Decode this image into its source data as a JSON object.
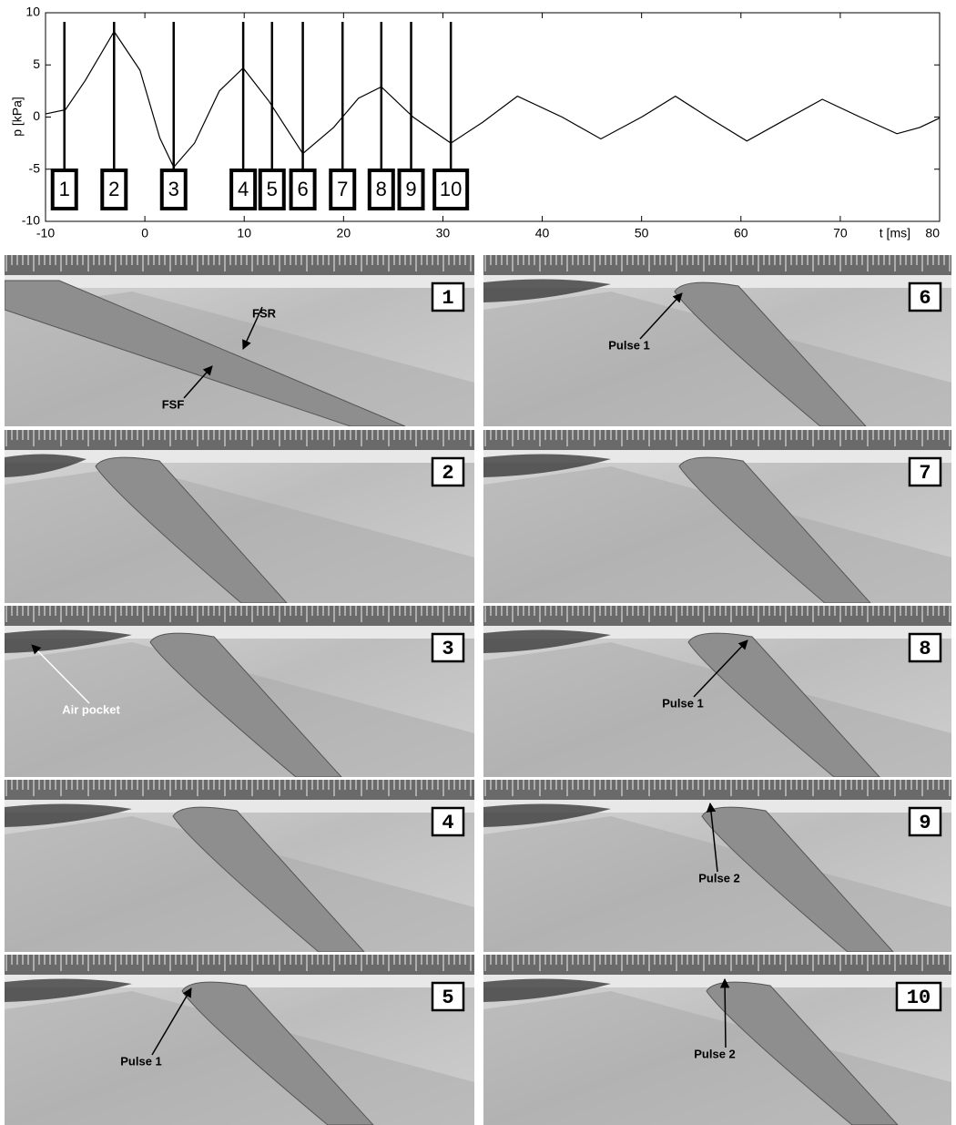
{
  "chart_data": {
    "type": "line",
    "ylabel": "p [kPa]",
    "xlabel": "t [ms]",
    "xlim": [
      -10,
      80
    ],
    "xticks": [
      -10,
      0,
      10,
      20,
      30,
      40,
      50,
      60,
      70,
      80
    ],
    "ylim": [
      -10,
      10
    ],
    "yticks": [
      -10,
      -5,
      0,
      5,
      10
    ],
    "series": [
      {
        "color": "#000000",
        "x": [
          -10,
          -8,
          -6,
          -3.1,
          -0.5,
          1.5,
          2.9,
          5,
          7.5,
          9.9,
          12.5,
          15.9,
          19,
          21.5,
          23.8,
          27,
          30.8,
          34,
          37.5,
          42,
          45.9,
          50,
          53.4,
          57,
          60.6,
          64,
          68.2,
          72,
          75.7,
          78,
          80
        ],
        "values": [
          0.3,
          0.7,
          3.5,
          8.2,
          4.5,
          -2,
          -4.8,
          -2.5,
          2.5,
          4.7,
          1.5,
          -3.5,
          -1,
          1.8,
          2.9,
          0,
          -2.5,
          -0.5,
          2.0,
          0,
          -2.1,
          0,
          2.0,
          -0.2,
          -2.3,
          -0.5,
          1.7,
          0,
          -1.6,
          -1,
          -0.1
        ]
      }
    ],
    "markers": {
      "labels": [
        "1",
        "2",
        "3",
        "4",
        "5",
        "6",
        "7",
        "8",
        "9",
        "10"
      ],
      "x": [
        -8.1,
        -3.1,
        2.9,
        9.9,
        12.8,
        15.9,
        19.9,
        23.8,
        26.8,
        30.8
      ]
    }
  },
  "photos": [
    {
      "label": "1",
      "annotations": [
        "FSR",
        "FSF"
      ]
    },
    {
      "label": "2",
      "annotations": []
    },
    {
      "label": "3",
      "annotations": [
        "Air pocket"
      ]
    },
    {
      "label": "4",
      "annotations": []
    },
    {
      "label": "5",
      "annotations": [
        "Pulse 1"
      ]
    },
    {
      "label": "6",
      "annotations": [
        "Pulse 1"
      ]
    },
    {
      "label": "7",
      "annotations": []
    },
    {
      "label": "8",
      "annotations": [
        "Pulse 1"
      ]
    },
    {
      "label": "9",
      "annotations": [
        "Pulse 2"
      ]
    },
    {
      "label": "10",
      "annotations": [
        "Pulse 2"
      ]
    }
  ]
}
